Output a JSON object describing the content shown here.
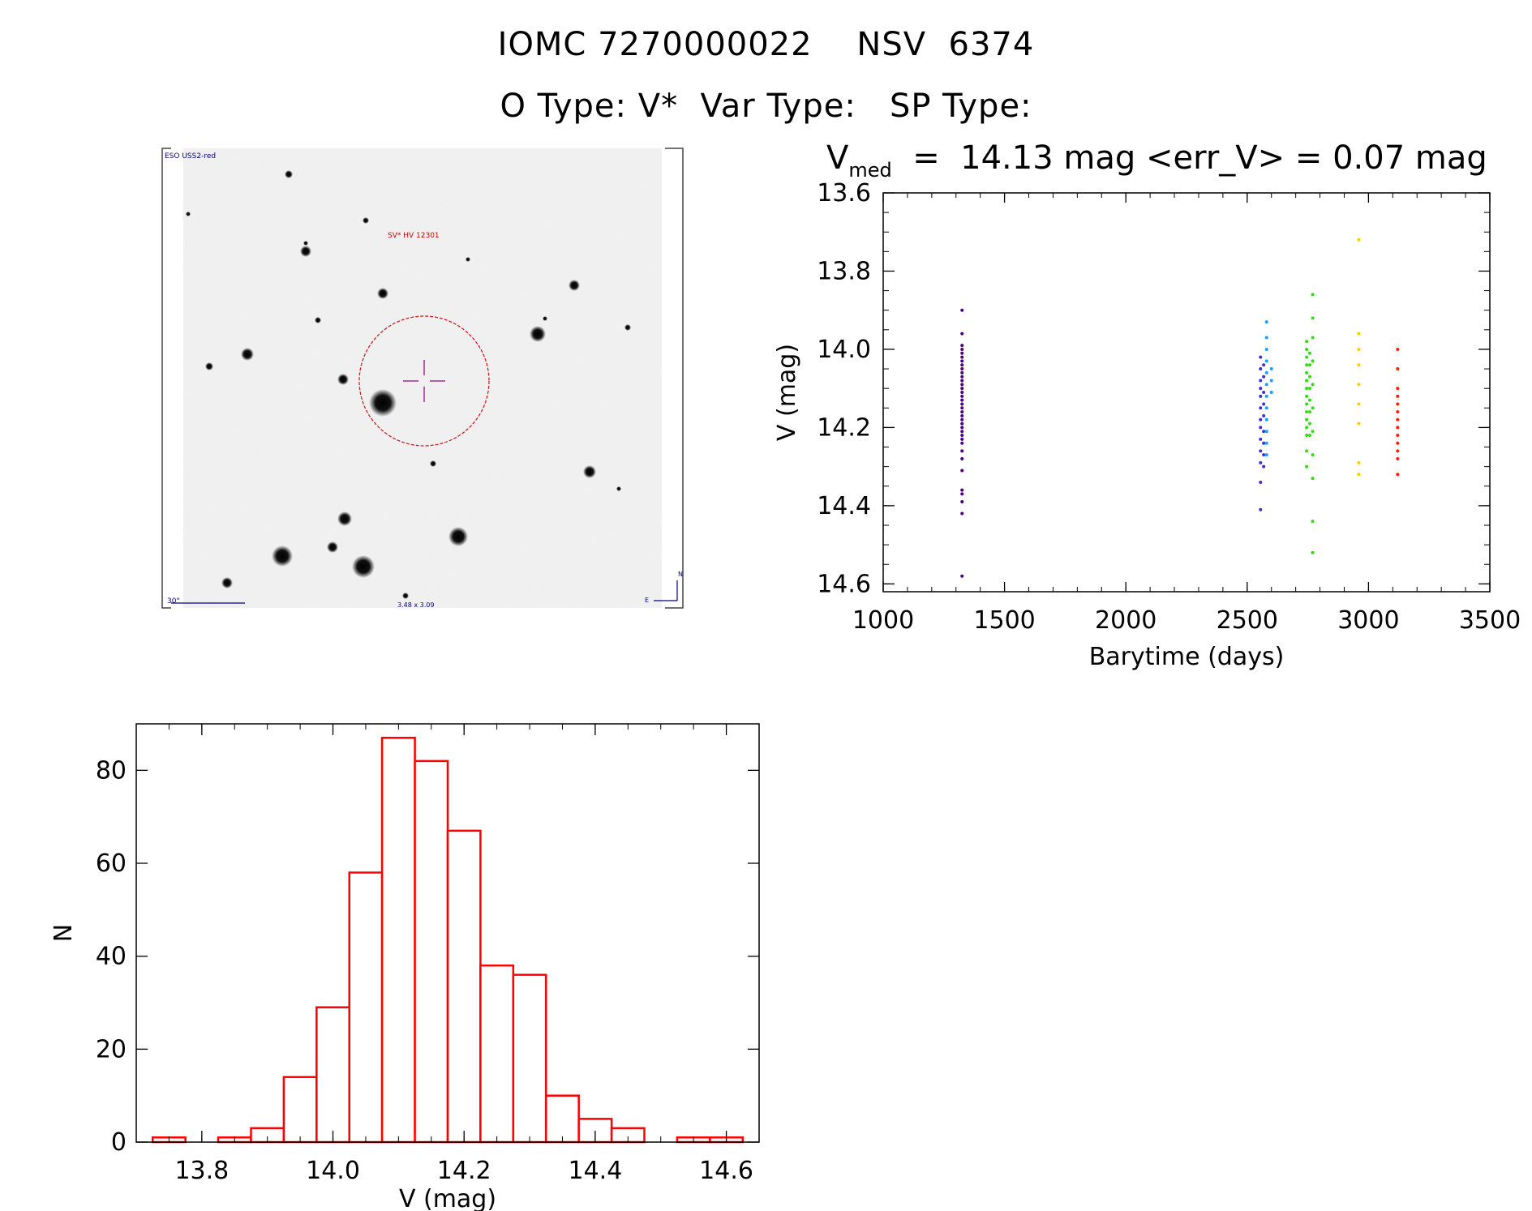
{
  "header": {
    "title": "IOMC 7270000022    NSV  6374",
    "subtitle": "O Type: V*  Var Type:   SP Type:"
  },
  "finder": {
    "survey_label": "ESO USS2-red",
    "target_label": "SV* HV 12301",
    "scale_label": "30\"",
    "size_label": "3.48 x 3.09",
    "north_label": "N",
    "east_label": "E"
  },
  "chart_data": [
    {
      "type": "scatter",
      "title_main": "V",
      "title_sub": "med",
      "title_rest": "  =  14.13 mag <err_V> = 0.07 mag",
      "xlabel": "Barytime (days)",
      "ylabel": "V (mag)",
      "xlim": [
        1000,
        3500
      ],
      "ylim": [
        14.62,
        13.6
      ],
      "xticks": [
        "1000",
        "1500",
        "2000",
        "2500",
        "3000",
        "3500"
      ],
      "yticks": [
        "13.6",
        "13.8",
        "14.0",
        "14.2",
        "14.4",
        "14.6"
      ],
      "grid": false,
      "series": [
        {
          "color": "#4b0082",
          "points": [
            [
              1325,
              13.9
            ],
            [
              1325,
              13.96
            ],
            [
              1325,
              13.99
            ],
            [
              1325,
              14.0
            ],
            [
              1325,
              14.01
            ],
            [
              1325,
              14.02
            ],
            [
              1325,
              14.03
            ],
            [
              1325,
              14.04
            ],
            [
              1325,
              14.05
            ],
            [
              1325,
              14.06
            ],
            [
              1325,
              14.07
            ],
            [
              1325,
              14.08
            ],
            [
              1325,
              14.09
            ],
            [
              1325,
              14.1
            ],
            [
              1325,
              14.11
            ],
            [
              1325,
              14.12
            ],
            [
              1325,
              14.13
            ],
            [
              1325,
              14.14
            ],
            [
              1325,
              14.15
            ],
            [
              1325,
              14.16
            ],
            [
              1325,
              14.17
            ],
            [
              1325,
              14.18
            ],
            [
              1325,
              14.19
            ],
            [
              1325,
              14.2
            ],
            [
              1325,
              14.21
            ],
            [
              1325,
              14.22
            ],
            [
              1325,
              14.23
            ],
            [
              1325,
              14.24
            ],
            [
              1325,
              14.26
            ],
            [
              1325,
              14.28
            ],
            [
              1325,
              14.31
            ],
            [
              1325,
              14.36
            ],
            [
              1325,
              14.37
            ],
            [
              1325,
              14.39
            ],
            [
              1325,
              14.42
            ],
            [
              1325,
              14.58
            ]
          ]
        },
        {
          "color": "#3f2fd6",
          "points": [
            [
              2555,
              14.02
            ],
            [
              2555,
              14.05
            ],
            [
              2555,
              14.08
            ],
            [
              2555,
              14.1
            ],
            [
              2555,
              14.12
            ],
            [
              2555,
              14.15
            ],
            [
              2555,
              14.18
            ],
            [
              2555,
              14.2
            ],
            [
              2555,
              14.23
            ],
            [
              2555,
              14.26
            ],
            [
              2555,
              14.29
            ],
            [
              2555,
              14.34
            ],
            [
              2555,
              14.41
            ],
            [
              2568,
              14.04
            ],
            [
              2568,
              14.07
            ],
            [
              2568,
              14.11
            ],
            [
              2568,
              14.14
            ],
            [
              2568,
              14.17
            ],
            [
              2568,
              14.21
            ],
            [
              2568,
              14.24
            ],
            [
              2568,
              14.27
            ],
            [
              2568,
              14.3
            ]
          ]
        },
        {
          "color": "#1aa0ff",
          "points": [
            [
              2580,
              13.93
            ],
            [
              2580,
              13.97
            ],
            [
              2580,
              14.0
            ],
            [
              2580,
              14.03
            ],
            [
              2580,
              14.06
            ],
            [
              2580,
              14.09
            ],
            [
              2580,
              14.12
            ],
            [
              2580,
              14.15
            ],
            [
              2580,
              14.18
            ],
            [
              2580,
              14.21
            ],
            [
              2580,
              14.24
            ],
            [
              2580,
              14.27
            ],
            [
              2600,
              14.05
            ],
            [
              2600,
              14.08
            ],
            [
              2600,
              14.11
            ]
          ]
        },
        {
          "color": "#33dd11",
          "points": [
            [
              2745,
              13.98
            ],
            [
              2745,
              14.0
            ],
            [
              2745,
              14.02
            ],
            [
              2745,
              14.04
            ],
            [
              2745,
              14.06
            ],
            [
              2745,
              14.08
            ],
            [
              2745,
              14.1
            ],
            [
              2745,
              14.12
            ],
            [
              2745,
              14.14
            ],
            [
              2745,
              14.16
            ],
            [
              2745,
              14.18
            ],
            [
              2745,
              14.2
            ],
            [
              2745,
              14.22
            ],
            [
              2745,
              14.26
            ],
            [
              2745,
              14.3
            ],
            [
              2758,
              14.01
            ],
            [
              2758,
              14.04
            ],
            [
              2758,
              14.07
            ],
            [
              2758,
              14.1
            ],
            [
              2758,
              14.13
            ],
            [
              2758,
              14.16
            ],
            [
              2758,
              14.19
            ],
            [
              2758,
              14.22
            ],
            [
              2770,
              13.86
            ],
            [
              2770,
              13.92
            ],
            [
              2770,
              13.97
            ],
            [
              2770,
              14.03
            ],
            [
              2770,
              14.09
            ],
            [
              2770,
              14.15
            ],
            [
              2770,
              14.21
            ],
            [
              2770,
              14.27
            ],
            [
              2770,
              14.33
            ],
            [
              2770,
              14.44
            ],
            [
              2770,
              14.52
            ]
          ]
        },
        {
          "color": "#ffcc00",
          "points": [
            [
              2960,
              13.72
            ],
            [
              2960,
              13.96
            ],
            [
              2960,
              14.0
            ],
            [
              2960,
              14.04
            ],
            [
              2960,
              14.09
            ],
            [
              2960,
              14.14
            ],
            [
              2960,
              14.19
            ],
            [
              2960,
              14.29
            ],
            [
              2960,
              14.32
            ]
          ]
        },
        {
          "color": "#ff2200",
          "points": [
            [
              3120,
              14.0
            ],
            [
              3120,
              14.05
            ],
            [
              3120,
              14.1
            ],
            [
              3120,
              14.12
            ],
            [
              3120,
              14.14
            ],
            [
              3120,
              14.16
            ],
            [
              3120,
              14.18
            ],
            [
              3120,
              14.2
            ],
            [
              3120,
              14.22
            ],
            [
              3120,
              14.24
            ],
            [
              3120,
              14.26
            ],
            [
              3120,
              14.28
            ],
            [
              3120,
              14.32
            ]
          ]
        }
      ]
    },
    {
      "type": "histogram",
      "xlabel": "V (mag)",
      "ylabel": "N",
      "xlim": [
        13.7,
        14.65
      ],
      "ylim": [
        0,
        90
      ],
      "xticks": [
        "13.8",
        "14.0",
        "14.2",
        "14.4",
        "14.6"
      ],
      "yticks": [
        "0",
        "20",
        "40",
        "60",
        "80"
      ],
      "bar_color": "#ff0000",
      "bins": [
        {
          "x0": 13.725,
          "x1": 13.775,
          "count": 1
        },
        {
          "x0": 13.775,
          "x1": 13.825,
          "count": 0
        },
        {
          "x0": 13.825,
          "x1": 13.875,
          "count": 1
        },
        {
          "x0": 13.875,
          "x1": 13.925,
          "count": 3
        },
        {
          "x0": 13.925,
          "x1": 13.975,
          "count": 14
        },
        {
          "x0": 13.975,
          "x1": 14.025,
          "count": 29
        },
        {
          "x0": 14.025,
          "x1": 14.075,
          "count": 58
        },
        {
          "x0": 14.075,
          "x1": 14.125,
          "count": 87
        },
        {
          "x0": 14.125,
          "x1": 14.175,
          "count": 82
        },
        {
          "x0": 14.175,
          "x1": 14.225,
          "count": 67
        },
        {
          "x0": 14.225,
          "x1": 14.275,
          "count": 38
        },
        {
          "x0": 14.275,
          "x1": 14.325,
          "count": 36
        },
        {
          "x0": 14.325,
          "x1": 14.375,
          "count": 10
        },
        {
          "x0": 14.375,
          "x1": 14.425,
          "count": 5
        },
        {
          "x0": 14.425,
          "x1": 14.475,
          "count": 3
        },
        {
          "x0": 14.475,
          "x1": 14.525,
          "count": 0
        },
        {
          "x0": 14.525,
          "x1": 14.575,
          "count": 1
        },
        {
          "x0": 14.575,
          "x1": 14.625,
          "count": 1
        }
      ]
    }
  ]
}
